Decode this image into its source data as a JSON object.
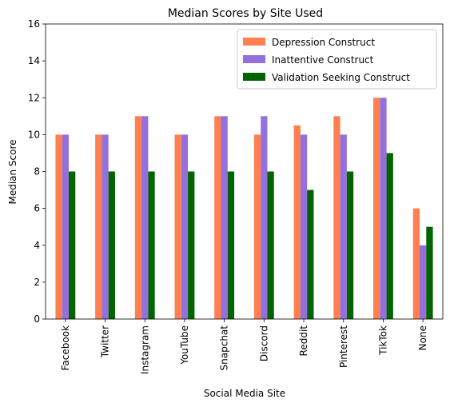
{
  "chart_data": {
    "type": "bar",
    "title": "Median Scores by Site Used",
    "xlabel": "Social Media Site",
    "ylabel": "Median Score",
    "ylim": [
      0,
      16
    ],
    "yticks": [
      0,
      2,
      4,
      6,
      8,
      10,
      12,
      14,
      16
    ],
    "grid": false,
    "legend_position": "top-right",
    "categories": [
      "Facebook",
      "Twitter",
      "Instagram",
      "YouTube",
      "Snapchat",
      "Discord",
      "Reddit",
      "Pinterest",
      "TikTok",
      "None"
    ],
    "series": [
      {
        "name": "Depression Construct",
        "color": "#ff7f50",
        "values": [
          10,
          10,
          11,
          10,
          11,
          10,
          10.5,
          11,
          12,
          6
        ]
      },
      {
        "name": "Inattentive Construct",
        "color": "#9370db",
        "values": [
          10,
          10,
          11,
          10,
          11,
          11,
          10,
          10,
          12,
          4
        ]
      },
      {
        "name": "Validation Seeking Construct",
        "color": "#006400",
        "values": [
          8,
          8,
          8,
          8,
          8,
          8,
          7,
          8,
          9,
          5
        ]
      }
    ]
  }
}
